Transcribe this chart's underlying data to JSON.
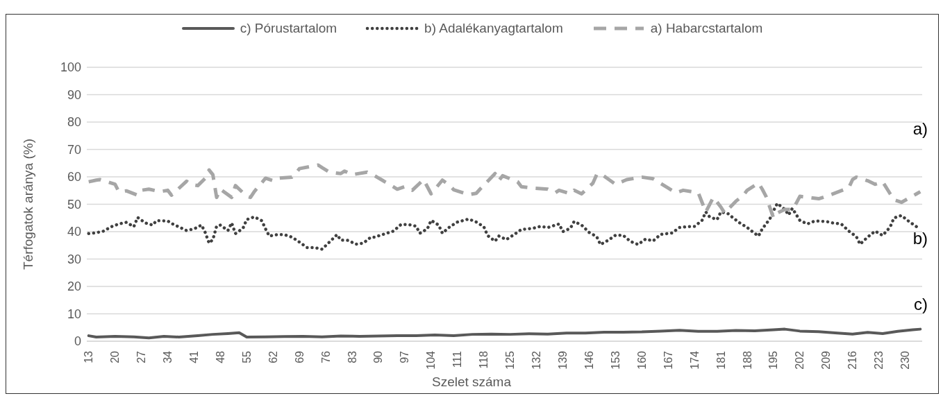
{
  "chart_data": {
    "type": "line",
    "xlabel": "Szelet száma",
    "ylabel": "Térfogatok aránya (%)",
    "xlim": [
      12.5,
      234.5
    ],
    "xticks": [
      13,
      20,
      27,
      34,
      41,
      48,
      55,
      62,
      69,
      76,
      83,
      90,
      97,
      104,
      111,
      118,
      125,
      132,
      139,
      146,
      153,
      160,
      167,
      174,
      181,
      188,
      195,
      202,
      209,
      216,
      223,
      230
    ],
    "ylim": [
      0,
      100
    ],
    "yticks": [
      0,
      10,
      20,
      30,
      40,
      50,
      60,
      70,
      80,
      90,
      100
    ],
    "grid": "y",
    "legend": "top",
    "marker": "none",
    "annotations": [
      "a)",
      "b)",
      "c)"
    ],
    "series": [
      {
        "name": "c) Pórustartalom",
        "color": "#595959",
        "line_style": "solid",
        "x": [
          13,
          15,
          20,
          25,
          29,
          33,
          37,
          42,
          46,
          50,
          53,
          55,
          60,
          65,
          70,
          75,
          80,
          85,
          90,
          95,
          100,
          105,
          110,
          115,
          120,
          125,
          130,
          135,
          140,
          145,
          150,
          155,
          160,
          165,
          170,
          175,
          180,
          185,
          190,
          195,
          198,
          202,
          207,
          212,
          216,
          220,
          224,
          228,
          232,
          234
        ],
        "values": [
          2,
          1.5,
          1.8,
          1.6,
          1.2,
          1.8,
          1.5,
          2,
          2.5,
          2.8,
          3.1,
          1.5,
          1.6,
          1.7,
          1.8,
          1.6,
          1.9,
          1.8,
          1.9,
          2,
          2,
          2.3,
          2,
          2.5,
          2.6,
          2.5,
          2.7,
          2.6,
          3,
          3,
          3.3,
          3.3,
          3.4,
          3.7,
          4,
          3.6,
          3.6,
          3.9,
          3.8,
          4.2,
          4.4,
          3.7,
          3.5,
          3,
          2.6,
          3.2,
          2.8,
          3.6,
          4.2,
          4.4
        ]
      },
      {
        "name": "b) Adalékanyagtartalom",
        "color": "#404040",
        "line_style": "dotted",
        "x": [
          13,
          15,
          17,
          19,
          21,
          23,
          25,
          26,
          28,
          30,
          31,
          34,
          35,
          37,
          39,
          41,
          43,
          44,
          45,
          46,
          47,
          48,
          50,
          51,
          52,
          54,
          55,
          57,
          59,
          60,
          61,
          63,
          65,
          67,
          69,
          71,
          73,
          75,
          77,
          79,
          80,
          82,
          84,
          86,
          88,
          89,
          91,
          94,
          96,
          98,
          100,
          101,
          103,
          104,
          106,
          107,
          109,
          111,
          114,
          116,
          118,
          119,
          121,
          122,
          124,
          126,
          128,
          131,
          133,
          135,
          138,
          139,
          141,
          142,
          144,
          146,
          148,
          149,
          151,
          153,
          155,
          157,
          159,
          161,
          163,
          165,
          168,
          170,
          172,
          174,
          176,
          177,
          178,
          180,
          181,
          183,
          184,
          186,
          188,
          189,
          191,
          192,
          194,
          195,
          196,
          198,
          199,
          200,
          202,
          204,
          206,
          209,
          211,
          213,
          215,
          217,
          218,
          220,
          222,
          224,
          226,
          227,
          229,
          231,
          233
        ],
        "values": [
          39.3,
          39.6,
          40.2,
          41.8,
          42.8,
          43.4,
          41.8,
          45.2,
          43.2,
          42.4,
          44,
          43.9,
          43,
          41.7,
          40.4,
          41,
          42.4,
          39.6,
          35.8,
          37.1,
          42,
          42.4,
          40.4,
          43.2,
          39.3,
          41.2,
          44.4,
          45.4,
          44,
          41,
          38.4,
          38.9,
          38.9,
          38,
          36.2,
          34.2,
          34.2,
          33.6,
          36.2,
          38.9,
          36.9,
          36.8,
          35.4,
          35.8,
          38,
          38,
          38.9,
          40.2,
          42.6,
          42.6,
          42,
          39.4,
          41,
          44.1,
          42.4,
          39.4,
          41.8,
          43.5,
          44.6,
          43.5,
          41.8,
          38.6,
          36.5,
          38.4,
          37.1,
          38.9,
          40.8,
          41.2,
          41.9,
          41.5,
          42.8,
          40,
          41.2,
          43.7,
          42.4,
          39.7,
          38.2,
          35.3,
          36.8,
          38.7,
          38.7,
          36.4,
          35.3,
          37.3,
          36.6,
          39,
          39.5,
          41.5,
          41.8,
          41.9,
          44.1,
          47.2,
          45.4,
          44.4,
          47.2,
          46.5,
          45.3,
          43.2,
          41.5,
          40.4,
          38.4,
          41,
          44.6,
          47.6,
          50.3,
          48.1,
          46.1,
          48.5,
          44.1,
          42.8,
          43.9,
          43.7,
          43.1,
          42.8,
          40.2,
          38.2,
          35.4,
          38,
          40.2,
          38.6,
          41.7,
          45,
          45.9,
          43.7,
          41.8
        ]
      },
      {
        "name": "a) Habarcstartalom",
        "color": "#a6a6a6",
        "line_style": "dashed",
        "x": [
          13,
          15,
          16,
          20,
          21,
          23,
          26,
          27,
          29,
          32,
          34,
          35,
          39,
          40,
          42,
          44,
          45,
          46,
          47,
          48,
          51,
          52,
          55,
          56,
          57,
          60,
          62,
          63,
          67,
          68,
          69,
          74,
          75,
          77,
          80,
          81,
          83,
          87,
          89,
          91,
          95,
          97,
          99,
          102,
          103,
          104,
          107,
          109,
          110,
          114,
          116,
          117,
          121,
          122,
          123,
          127,
          128,
          131,
          135,
          137,
          138,
          141,
          142,
          144,
          147,
          148,
          149,
          153,
          155,
          156,
          160,
          163,
          167,
          169,
          171,
          175,
          176,
          177,
          179,
          181,
          182,
          185,
          187,
          188,
          191,
          192,
          193,
          195,
          196,
          198,
          200,
          201,
          202,
          207,
          209,
          211,
          215,
          216,
          217,
          220,
          222,
          224,
          226,
          227,
          229,
          233,
          234
        ],
        "values": [
          58.2,
          58.8,
          59,
          57.3,
          54.6,
          54.9,
          53.3,
          55.1,
          55.5,
          54.6,
          55.1,
          53.3,
          58.4,
          57.3,
          56.8,
          59.5,
          62.5,
          60.8,
          52.5,
          55.5,
          52.5,
          56.8,
          52.9,
          52.5,
          54.6,
          59.5,
          58.6,
          59.5,
          59.9,
          61.2,
          63,
          64.3,
          63.4,
          61.7,
          61.2,
          62.1,
          60.8,
          61.7,
          60.4,
          58.8,
          55.5,
          56.4,
          55.1,
          59,
          56.4,
          53.8,
          58.8,
          56.8,
          55.3,
          53.5,
          54,
          55.5,
          61.2,
          58.6,
          60.4,
          58.2,
          56.4,
          55.9,
          55.5,
          54.2,
          55.1,
          53.8,
          55.1,
          53.8,
          57.7,
          60.8,
          61.2,
          57.3,
          58.4,
          59,
          59.9,
          59.3,
          55.9,
          54.2,
          55.1,
          54.2,
          50.7,
          47.2,
          52.5,
          49,
          46.8,
          51.1,
          53.3,
          55.1,
          57.7,
          55.5,
          52.9,
          45,
          46.8,
          48.1,
          48.1,
          50.3,
          52.9,
          52,
          52.9,
          53.9,
          56,
          59,
          59.9,
          58.6,
          57.3,
          58.2,
          53.8,
          51.6,
          50.7,
          53.8,
          54.6
        ]
      }
    ]
  }
}
